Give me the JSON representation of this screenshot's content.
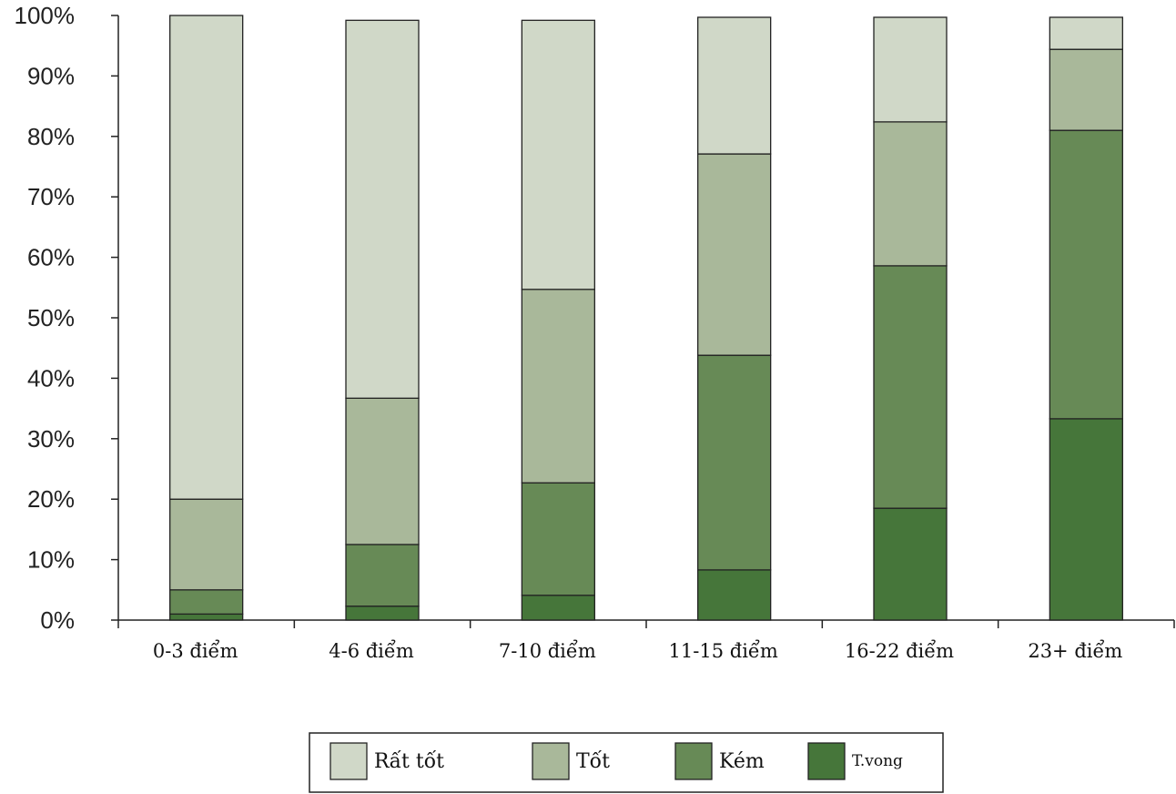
{
  "chart_data": {
    "type": "bar",
    "stacked": true,
    "title": "",
    "xlabel": "",
    "ylabel": "",
    "ylim": [
      0,
      100
    ],
    "yticks": [
      "0%",
      "10%",
      "20%",
      "30%",
      "40%",
      "50%",
      "60%",
      "70%",
      "80%",
      "90%",
      "100%"
    ],
    "categories": [
      "0-3 điểm",
      "4-6 điểm",
      "7-10 điểm",
      "11-15 điểm",
      "16-22 điểm",
      "23+ điểm"
    ],
    "series": [
      {
        "name": "T.vong",
        "color": "#46763a",
        "values": [
          1,
          2.3,
          4.1,
          8.3,
          18.5,
          33.3
        ]
      },
      {
        "name": "Kém",
        "color": "#678a56",
        "values": [
          4,
          10.2,
          18.6,
          35.5,
          40.1,
          47.7
        ]
      },
      {
        "name": "Tốt",
        "color": "#a9b89a",
        "values": [
          15,
          24.2,
          32.0,
          33.3,
          23.8,
          13.4
        ]
      },
      {
        "name": "Rất tốt",
        "color": "#d0d8c8",
        "values": [
          80,
          62.5,
          44.5,
          22.6,
          17.3,
          5.3
        ]
      }
    ],
    "legend": {
      "placement": "bottom",
      "order": [
        "Rất tốt",
        "Tốt",
        "Kém",
        "T.vong"
      ]
    },
    "grid": false
  }
}
